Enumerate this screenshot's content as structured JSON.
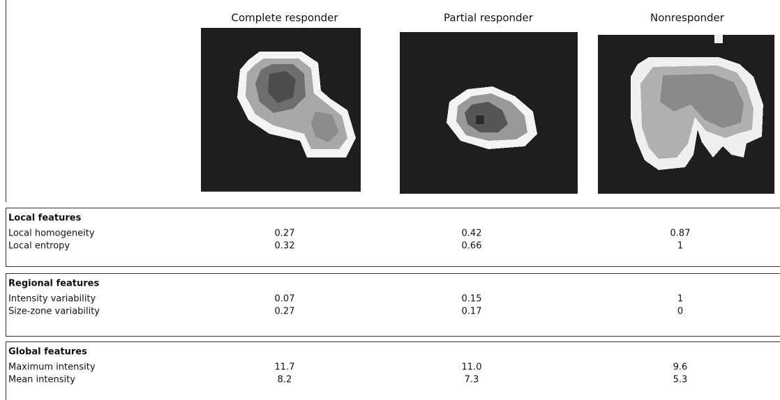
{
  "header": {
    "columns": [
      "Complete responder",
      "Partial responder",
      "Nonresponder"
    ]
  },
  "sections": [
    {
      "title": "Local features",
      "rows": [
        {
          "label": "Local homogeneity",
          "values": [
            "0.27",
            "0.42",
            "0.87"
          ]
        },
        {
          "label": "Local entropy",
          "values": [
            "0.32",
            "0.66",
            "1"
          ]
        }
      ]
    },
    {
      "title": "Regional features",
      "rows": [
        {
          "label": "Intensity variability",
          "values": [
            "0.07",
            "0.15",
            "1"
          ]
        },
        {
          "label": "Size-zone variability",
          "values": [
            "0.27",
            "0.17",
            "0"
          ]
        }
      ]
    },
    {
      "title": "Global features",
      "rows": [
        {
          "label": "Maximum intensity",
          "values": [
            "11.7",
            "11.0",
            "9.6"
          ]
        },
        {
          "label": "Mean intensity",
          "values": [
            "8.2",
            "7.3",
            "5.3"
          ]
        }
      ]
    }
  ]
}
